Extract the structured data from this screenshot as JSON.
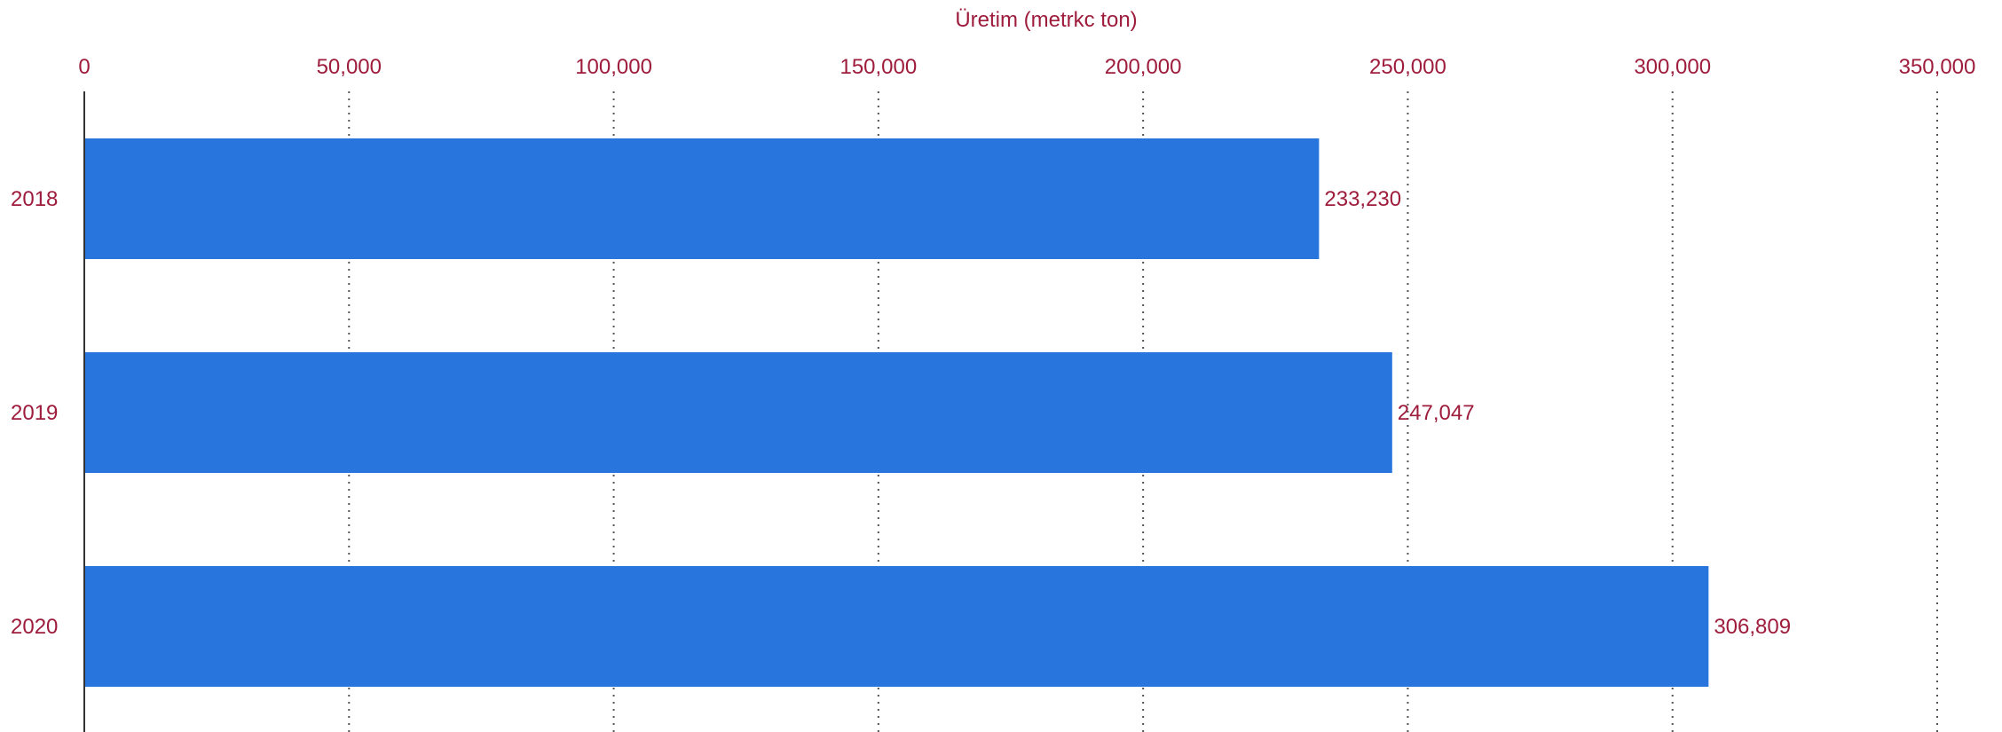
{
  "chart_data": {
    "type": "bar",
    "orientation": "horizontal",
    "xlabel": "Üretim (metrkc ton)",
    "xlim": [
      0,
      350000
    ],
    "x_ticks": [
      0,
      50000,
      100000,
      150000,
      200000,
      250000,
      300000,
      350000
    ],
    "x_tick_labels": [
      "0",
      "50,000",
      "100,000",
      "150,000",
      "200,000",
      "250,000",
      "300,000",
      "350,000"
    ],
    "categories": [
      "2018",
      "2019",
      "2020"
    ],
    "values": [
      233230,
      247047,
      306809
    ],
    "value_labels": [
      "233,230",
      "247,047",
      "306,809"
    ],
    "x_axis_position": "top",
    "grid": true,
    "legend": false
  },
  "colors": {
    "bar": "#2876dd",
    "text": "#9e1c3c",
    "grid": "#555555",
    "axis": "#333333"
  }
}
